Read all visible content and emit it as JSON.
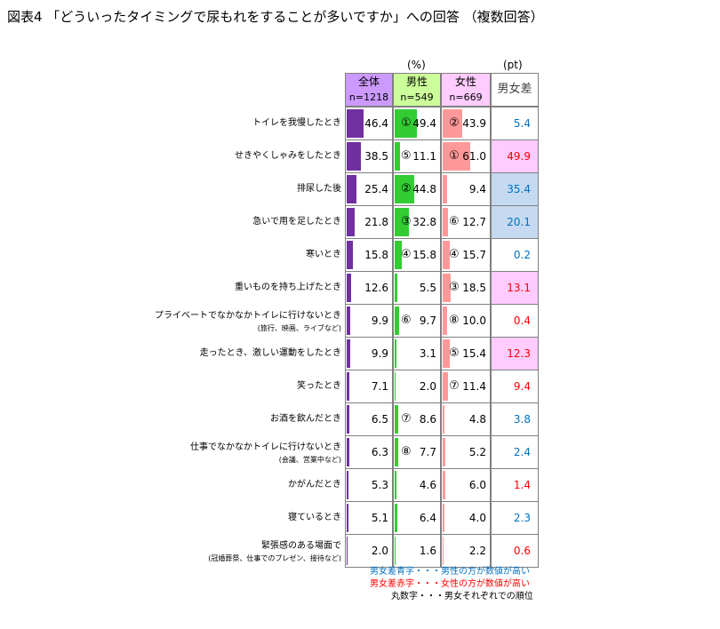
{
  "title": "図表4 「どういったタイミングで尿もれをすることが多いですか」への回答 （複数回答）",
  "units": {
    "percent": "(%)",
    "points": "(pt)"
  },
  "headers": {
    "total": {
      "label": "全体",
      "n": "n=1218"
    },
    "male": {
      "label": "男性",
      "n": "n=549"
    },
    "female": {
      "label": "女性",
      "n": "n=669"
    },
    "diff": {
      "label": "男女差"
    }
  },
  "colors": {
    "total_bar": "#7030a0",
    "male_bar": "#33cc33",
    "female_bar": "#ff9999",
    "total_header": "#cc99ff",
    "male_header": "#ccff99",
    "female_header": "#ffccff",
    "diff_header": "#ffffff",
    "blue_text": "#0070c0",
    "red_text": "#ff0000",
    "blue_fill": "#c5d9f1",
    "pink_fill": "#ffccff"
  },
  "rows": [
    {
      "label": "トイレを我慢したとき",
      "sub": "",
      "total": "46.4",
      "male": "49.4",
      "male_rank": "①",
      "female": "43.9",
      "female_rank": "②",
      "diff": "5.4",
      "diff_color": "blue",
      "highlight": ""
    },
    {
      "label": "せきやくしゃみをしたとき",
      "sub": "",
      "total": "38.5",
      "male": "11.1",
      "male_rank": "⑤",
      "female": "61.0",
      "female_rank": "①",
      "diff": "49.9",
      "diff_color": "red",
      "highlight": "pink"
    },
    {
      "label": "排尿した後",
      "sub": "",
      "total": "25.4",
      "male": "44.8",
      "male_rank": "②",
      "female": "9.4",
      "female_rank": "",
      "diff": "35.4",
      "diff_color": "blue",
      "highlight": "blue"
    },
    {
      "label": "急いで用を足したとき",
      "sub": "",
      "total": "21.8",
      "male": "32.8",
      "male_rank": "③",
      "female": "12.7",
      "female_rank": "⑥",
      "diff": "20.1",
      "diff_color": "blue",
      "highlight": "blue"
    },
    {
      "label": "寒いとき",
      "sub": "",
      "total": "15.8",
      "male": "15.8",
      "male_rank": "④",
      "female": "15.7",
      "female_rank": "④",
      "diff": "0.2",
      "diff_color": "blue",
      "highlight": ""
    },
    {
      "label": "重いものを持ち上げたとき",
      "sub": "",
      "total": "12.6",
      "male": "5.5",
      "male_rank": "",
      "female": "18.5",
      "female_rank": "③",
      "diff": "13.1",
      "diff_color": "red",
      "highlight": "pink"
    },
    {
      "label": "プライベートでなかなかトイレに行けないとき",
      "sub": "(旅行、映画、ライブなど)",
      "total": "9.9",
      "male": "9.7",
      "male_rank": "⑥",
      "female": "10.0",
      "female_rank": "⑧",
      "diff": "0.4",
      "diff_color": "red",
      "highlight": ""
    },
    {
      "label": "走ったとき、激しい運動をしたとき",
      "sub": "",
      "total": "9.9",
      "male": "3.1",
      "male_rank": "",
      "female": "15.4",
      "female_rank": "⑤",
      "diff": "12.3",
      "diff_color": "red",
      "highlight": "pink"
    },
    {
      "label": "笑ったとき",
      "sub": "",
      "total": "7.1",
      "male": "2.0",
      "male_rank": "",
      "female": "11.4",
      "female_rank": "⑦",
      "diff": "9.4",
      "diff_color": "red",
      "highlight": ""
    },
    {
      "label": "お酒を飲んだとき",
      "sub": "",
      "total": "6.5",
      "male": "8.6",
      "male_rank": "⑦",
      "female": "4.8",
      "female_rank": "",
      "diff": "3.8",
      "diff_color": "blue",
      "highlight": ""
    },
    {
      "label": "仕事でなかなかトイレに行けないとき",
      "sub": "(会議、営業中など)",
      "total": "6.3",
      "male": "7.7",
      "male_rank": "⑧",
      "female": "5.2",
      "female_rank": "",
      "diff": "2.4",
      "diff_color": "blue",
      "highlight": ""
    },
    {
      "label": "かがんだとき",
      "sub": "",
      "total": "5.3",
      "male": "4.6",
      "male_rank": "",
      "female": "6.0",
      "female_rank": "",
      "diff": "1.4",
      "diff_color": "red",
      "highlight": ""
    },
    {
      "label": "寝ているとき",
      "sub": "",
      "total": "5.1",
      "male": "6.4",
      "male_rank": "",
      "female": "4.0",
      "female_rank": "",
      "diff": "2.3",
      "diff_color": "blue",
      "highlight": ""
    },
    {
      "label": "緊張感のある場面で",
      "sub": "(冠婚葬祭、仕事でのプレゼン、接待など)",
      "total": "2.0",
      "male": "1.6",
      "male_rank": "",
      "female": "2.2",
      "female_rank": "",
      "diff": "0.6",
      "diff_color": "red",
      "highlight": ""
    }
  ],
  "notes": {
    "blue": "男女差青字・・・男性の方が数値が高い",
    "red": "男女差赤字・・・女性の方が数値が高い",
    "rank": "丸数字・・・男女それぞれでの順位"
  },
  "chart_data": {
    "type": "bar",
    "title": "図表4 「どういったタイミングで尿もれをすることが多いですか」への回答 （複数回答）",
    "categories": [
      "トイレを我慢したとき",
      "せきやくしゃみをしたとき",
      "排尿した後",
      "急いで用を足したとき",
      "寒いとき",
      "重いものを持ち上げたとき",
      "プライベートでなかなかトイレに行けないとき",
      "走ったとき、激しい運動をしたとき",
      "笑ったとき",
      "お酒を飲んだとき",
      "仕事でなかなかトイレに行けないとき",
      "かがんだとき",
      "寝ているとき",
      "緊張感のある場面で"
    ],
    "series": [
      {
        "name": "全体",
        "values": [
          46.4,
          38.5,
          25.4,
          21.8,
          15.8,
          12.6,
          9.9,
          9.9,
          7.1,
          6.5,
          6.3,
          5.3,
          5.1,
          2.0
        ]
      },
      {
        "name": "男性",
        "values": [
          49.4,
          11.1,
          44.8,
          32.8,
          15.8,
          5.5,
          9.7,
          3.1,
          2.0,
          8.6,
          7.7,
          4.6,
          6.4,
          1.6
        ]
      },
      {
        "name": "女性",
        "values": [
          43.9,
          61.0,
          9.4,
          12.7,
          15.7,
          18.5,
          10.0,
          15.4,
          11.4,
          4.8,
          5.2,
          6.0,
          4.0,
          2.2
        ]
      },
      {
        "name": "男女差",
        "values": [
          5.4,
          49.9,
          35.4,
          20.1,
          0.2,
          13.1,
          0.4,
          12.3,
          9.4,
          3.8,
          2.4,
          1.4,
          2.3,
          0.6
        ]
      }
    ],
    "ylabel": "(%)",
    "ylim": [
      0,
      100
    ]
  }
}
